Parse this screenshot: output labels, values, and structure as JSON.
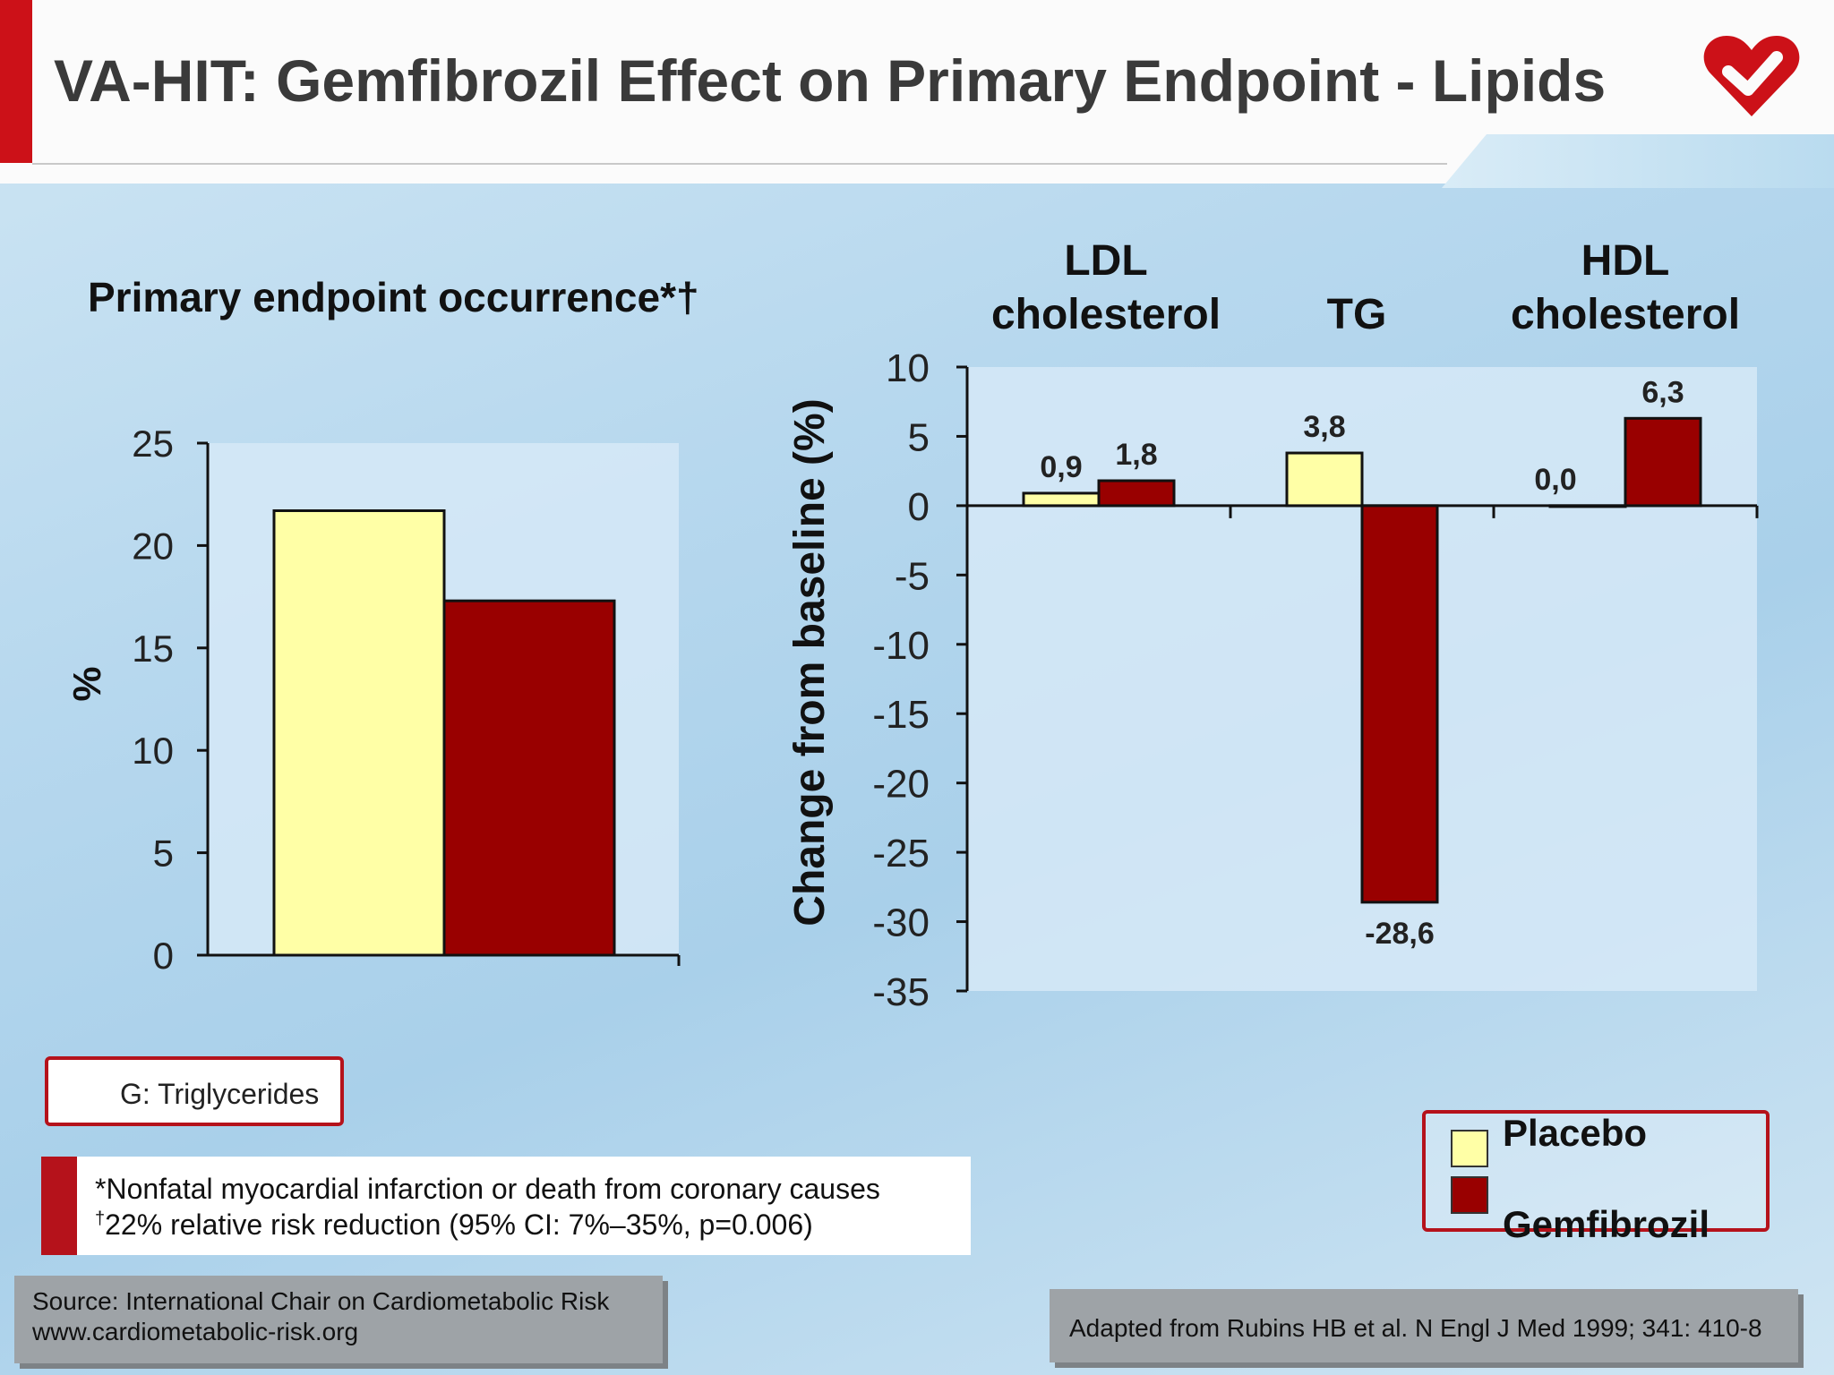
{
  "header": {
    "title": "VA-HIT: Gemfibrozil Effect on Primary Endpoint - Lipids"
  },
  "colors": {
    "placebo": "#ffffa6",
    "gemfibrozil": "#990000",
    "brand_red": "#cc1118"
  },
  "icons": {
    "logo": "heart-check-logo"
  },
  "chart_data": [
    {
      "type": "bar",
      "title": "Primary endpoint occurrence*†",
      "ylabel": "%",
      "ylim": [
        0,
        25
      ],
      "yticks": [
        "0",
        "5",
        "10",
        "15",
        "20",
        "25"
      ],
      "categories": [
        ""
      ],
      "series": [
        {
          "name": "Placebo",
          "values": [
            21.7
          ]
        },
        {
          "name": "Gemfibrozil",
          "values": [
            17.3
          ]
        }
      ]
    },
    {
      "type": "bar",
      "ylabel": "Change from baseline (%)",
      "ylim": [
        -35,
        10
      ],
      "yticks": [
        "10",
        "5",
        "0",
        "-5",
        "-10",
        "-15",
        "-20",
        "-25",
        "-30",
        "-35"
      ],
      "categories": [
        "LDL cholesterol",
        "TG",
        "HDL cholesterol"
      ],
      "category_lines": [
        [
          "LDL",
          "cholesterol"
        ],
        [
          "",
          "TG"
        ],
        [
          "HDL",
          "cholesterol"
        ]
      ],
      "series": [
        {
          "name": "Placebo",
          "values": [
            0.9,
            3.8,
            0.0
          ],
          "labels": [
            "0,9",
            "3,8",
            "0,0"
          ]
        },
        {
          "name": "Gemfibrozil",
          "values": [
            1.8,
            -28.6,
            6.3
          ],
          "labels": [
            "1,8",
            "-28,6",
            "6,3"
          ]
        }
      ]
    }
  ],
  "legend": {
    "placebo": "Placebo",
    "gemfibrozil": "Gemfibrozil"
  },
  "note_box": {
    "text": "G: Triglycerides"
  },
  "footnotes": {
    "line1": "*Nonfatal myocardial infarction or death from coronary causes",
    "line2_mark": "†",
    "line2": "22% relative risk reduction (95% CI: 7%–35%, p=0.006)"
  },
  "source": {
    "line1": "Source: International Chair on Cardiometabolic Risk",
    "line2": "www.cardiometabolic-risk.org"
  },
  "citation": "Adapted from Rubins HB et al. N Engl J Med 1999; 341: 410-8"
}
